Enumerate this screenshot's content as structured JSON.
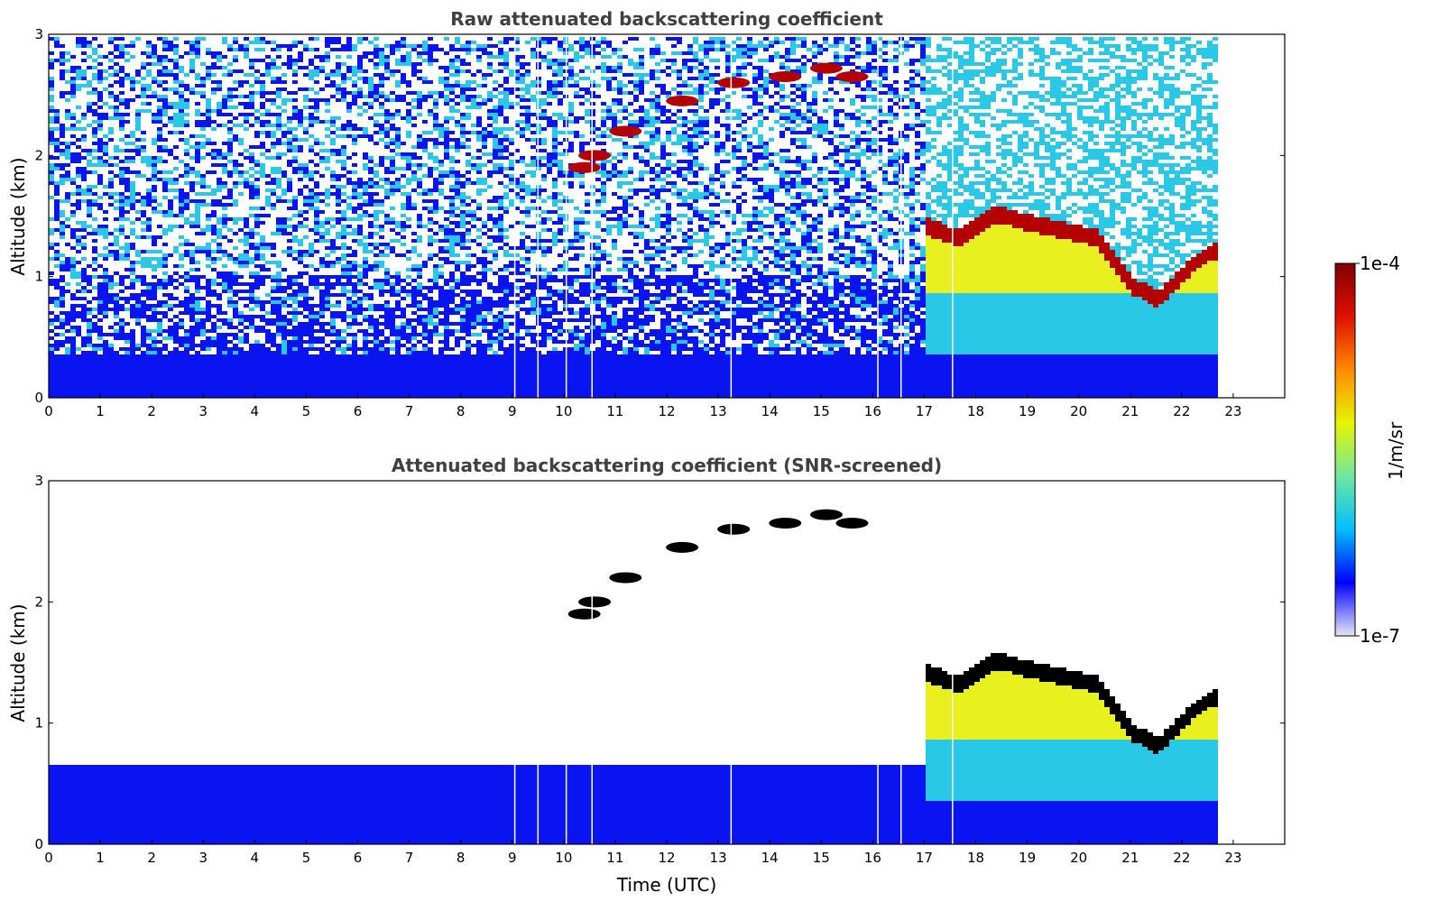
{
  "chart_data": [
    {
      "type": "heatmap",
      "title": "Raw attenuated backscattering coefficient",
      "xlabel": "",
      "ylabel": "Altitude (km)",
      "xlim": [
        0,
        24
      ],
      "ylim": [
        0,
        3
      ],
      "xticks": [
        "0",
        "1",
        "2",
        "3",
        "4",
        "5",
        "6",
        "7",
        "8",
        "9",
        "10",
        "11",
        "12",
        "13",
        "14",
        "15",
        "16",
        "17",
        "18",
        "19",
        "20",
        "21",
        "22",
        "23"
      ],
      "yticks": [
        "0",
        "1",
        "2",
        "3"
      ],
      "data_end_time": 22.8,
      "features": {
        "boundary_layer_top_km": 0.35,
        "aerosol_layer_top_km": 0.85,
        "thin_cloud_streak": [
          [
            10.4,
            1.9
          ],
          [
            10.6,
            2.0
          ],
          [
            11.2,
            2.2
          ],
          [
            12.3,
            2.45
          ],
          [
            13.3,
            2.6
          ],
          [
            14.3,
            2.65
          ],
          [
            15.1,
            2.72
          ],
          [
            15.6,
            2.65
          ]
        ],
        "cloud_base_afternoon": [
          [
            17.0,
            1.4
          ],
          [
            17.6,
            1.3
          ],
          [
            18.3,
            1.5
          ],
          [
            20.3,
            1.3
          ],
          [
            21.0,
            0.9
          ],
          [
            21.5,
            0.8
          ],
          [
            22.2,
            1.1
          ],
          [
            22.8,
            1.25
          ]
        ],
        "data_gaps_utc": [
          9.05,
          9.5,
          10.05,
          10.55,
          13.25,
          16.1,
          16.55,
          17.55
        ]
      }
    },
    {
      "type": "heatmap",
      "title": "Attenuated backscattering coefficient (SNR-screened)",
      "xlabel": "Time (UTC)",
      "ylabel": "Altitude (km)",
      "xlim": [
        0,
        24
      ],
      "ylim": [
        0,
        3
      ],
      "xticks": [
        "0",
        "1",
        "2",
        "3",
        "4",
        "5",
        "6",
        "7",
        "8",
        "9",
        "10",
        "11",
        "12",
        "13",
        "14",
        "15",
        "16",
        "17",
        "18",
        "19",
        "20",
        "21",
        "22",
        "23"
      ],
      "yticks": [
        "0",
        "1",
        "2",
        "3"
      ],
      "screened": "low signal-to-noise removed (white)"
    }
  ],
  "colorbar": {
    "label": "1/m/sr",
    "max_label": "1e-4",
    "min_label": "1e-7",
    "scale": "log",
    "colors": [
      "#e6e6f5",
      "#0000ff",
      "#00bfff",
      "#6fe8a0",
      "#e6f500",
      "#ff8a00",
      "#e01000",
      "#800000"
    ]
  },
  "palette": {
    "low": "#0a14f0",
    "mid": "#28c8e6",
    "high": "#e8f020",
    "peak": "#b40000",
    "screened_peak": "#000000"
  }
}
